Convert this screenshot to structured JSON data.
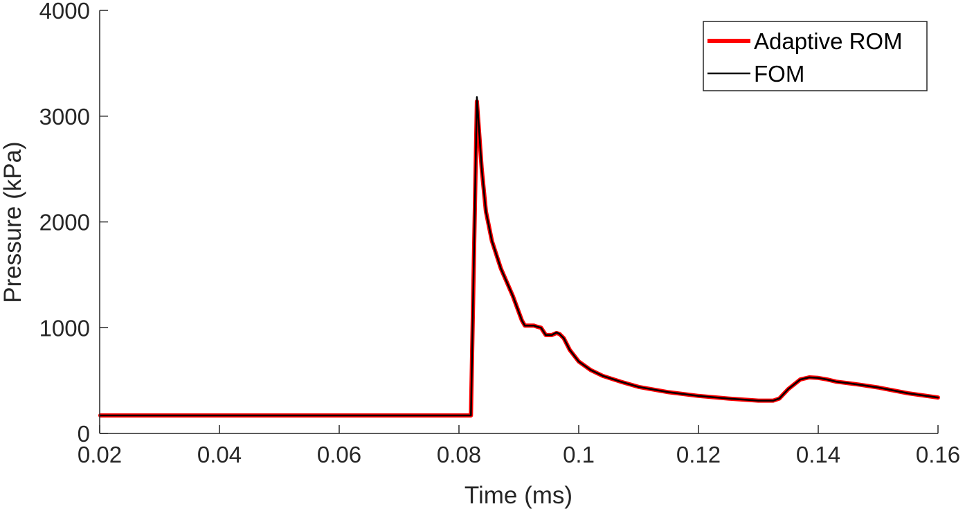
{
  "chart_data": {
    "type": "line",
    "xlabel": "Time (ms)",
    "ylabel": "Pressure (kPa)",
    "xlim": [
      0.02,
      0.16
    ],
    "ylim": [
      0,
      4000
    ],
    "x_ticks": [
      0.02,
      0.04,
      0.06,
      0.08,
      0.1,
      0.12,
      0.14,
      0.16
    ],
    "x_tick_labels": [
      "0.02",
      "0.04",
      "0.06",
      "0.08",
      "0.1",
      "0.12",
      "0.14",
      "0.16"
    ],
    "y_ticks": [
      0,
      1000,
      2000,
      3000,
      4000
    ],
    "y_tick_labels": [
      "0",
      "1000",
      "2000",
      "3000",
      "4000"
    ],
    "grid": false,
    "legend_position": "top-right",
    "series": [
      {
        "name": "Adaptive ROM",
        "color": "#ff0000",
        "x": [
          0.0201,
          0.08,
          0.082,
          0.083,
          0.0838,
          0.0845,
          0.0855,
          0.087,
          0.089,
          0.0905,
          0.091,
          0.0925,
          0.093,
          0.0937,
          0.0945,
          0.0955,
          0.0963,
          0.0968,
          0.0975,
          0.0985,
          0.1,
          0.102,
          0.104,
          0.107,
          0.11,
          0.115,
          0.12,
          0.125,
          0.13,
          0.1325,
          0.1335,
          0.135,
          0.137,
          0.1385,
          0.14,
          0.1415,
          0.143,
          0.145,
          0.147,
          0.15,
          0.155,
          0.16
        ],
        "y": [
          170,
          170,
          170,
          3140,
          2500,
          2100,
          1820,
          1560,
          1300,
          1070,
          1020,
          1020,
          1010,
          1000,
          930,
          930,
          950,
          940,
          900,
          790,
          680,
          600,
          545,
          490,
          440,
          390,
          355,
          330,
          310,
          310,
          330,
          420,
          510,
          530,
          525,
          510,
          490,
          475,
          460,
          435,
          380,
          340
        ]
      },
      {
        "name": "FOM",
        "color": "#000000",
        "x": [
          0.0201,
          0.08,
          0.082,
          0.083,
          0.0838,
          0.0845,
          0.0855,
          0.087,
          0.089,
          0.0905,
          0.091,
          0.0925,
          0.093,
          0.0937,
          0.0945,
          0.0955,
          0.0963,
          0.0968,
          0.0975,
          0.0985,
          0.1,
          0.102,
          0.104,
          0.107,
          0.11,
          0.115,
          0.12,
          0.125,
          0.13,
          0.1325,
          0.1335,
          0.135,
          0.137,
          0.1385,
          0.14,
          0.1415,
          0.143,
          0.145,
          0.147,
          0.15,
          0.155,
          0.16
        ],
        "y": [
          170,
          170,
          170,
          3180,
          2500,
          2100,
          1820,
          1560,
          1300,
          1070,
          1020,
          1020,
          1010,
          1000,
          930,
          930,
          955,
          940,
          900,
          790,
          680,
          600,
          545,
          490,
          440,
          390,
          355,
          330,
          310,
          310,
          330,
          420,
          510,
          530,
          525,
          510,
          490,
          475,
          460,
          435,
          380,
          340
        ]
      }
    ]
  }
}
